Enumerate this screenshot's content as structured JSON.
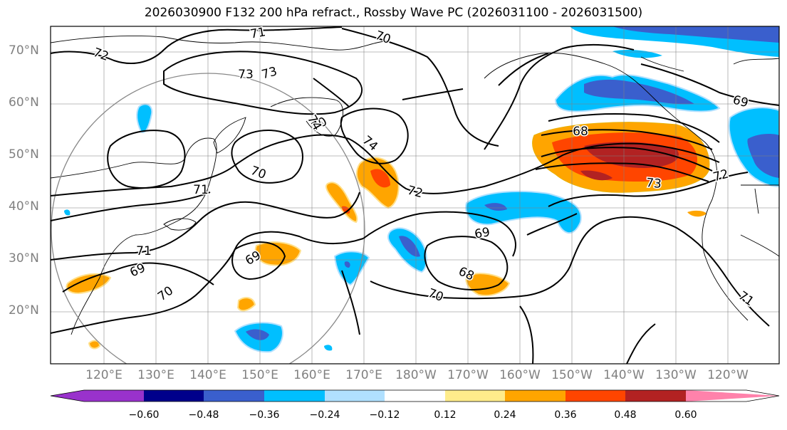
{
  "title": "2026030900 F132 200 hPa refract., Rossby Wave PC (2026031100 - 2026031500)",
  "lat_labels": [
    "70°N",
    "60°N",
    "50°N",
    "40°N",
    "30°N",
    "20°N"
  ],
  "lon_labels": [
    "120°E",
    "130°E",
    "140°E",
    "150°E",
    "160°E",
    "170°E",
    "180°W",
    "170°W",
    "160°W",
    "150°W",
    "140°W",
    "130°W",
    "120°W"
  ],
  "colorbar": {
    "ticks": [
      "−0.60",
      "−0.48",
      "−0.36",
      "−0.24",
      "−0.12",
      "0.12",
      "0.24",
      "0.36",
      "0.48",
      "0.60"
    ],
    "colors": [
      "#9932cc",
      "#00008b",
      "#3a5fcd",
      "#00bfff",
      "#b0e0ff",
      "#ffffff",
      "#ffec8b",
      "#ffa500",
      "#ff4500",
      "#b22222",
      "#ff82ab"
    ]
  },
  "contour_labels": [
    "71",
    "70",
    "72",
    "73",
    "73",
    "74",
    "70",
    "74",
    "72",
    "68",
    "69",
    "72",
    "73",
    "71",
    "70",
    "71",
    "69",
    "69",
    "69",
    "68",
    "70",
    "70",
    "71"
  ]
}
